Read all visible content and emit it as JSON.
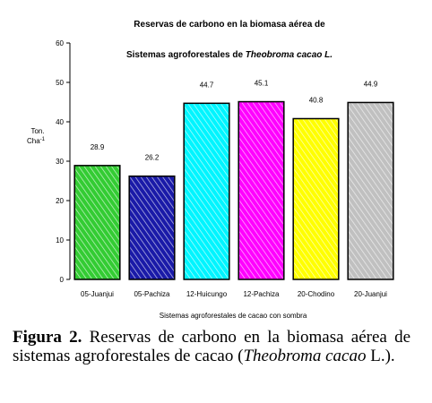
{
  "chart_data": {
    "type": "bar",
    "title_line1": "Reservas de carbono en  la biomasa aérea  de",
    "title_line2_prefix": "Sistemas agroforestales de ",
    "title_line2_italic": "Theobroma cacao L.",
    "ylabel_line1": "Ton.",
    "ylabel_line2": "Cha",
    "ylabel_sup": "-1",
    "xlabel": "Sistemas agroforestales de cacao con sombra",
    "ylim": [
      0,
      60
    ],
    "yticks": [
      0,
      10,
      20,
      30,
      40,
      50,
      60
    ],
    "categories": [
      "05-Juanjui",
      "05-Pachiza",
      "12-Huicungo",
      "12-Pachiza",
      "20-Chodino",
      "20-Juanjui"
    ],
    "values": [
      28.9,
      26.2,
      44.7,
      45.1,
      40.8,
      44.9
    ],
    "value_labels": [
      "28.9",
      "26.2",
      "44.7",
      "45.1",
      "40.8",
      "44.9"
    ],
    "colors": [
      "#33cc33",
      "#1a1aa8",
      "#00f5ff",
      "#ff00ff",
      "#ffff00",
      "#c0c0c0"
    ],
    "grid": false,
    "legend": "none"
  },
  "caption": {
    "label": "Figura 2.",
    "text_before": " Reservas de carbono en la biomasa aérea de sistemas agroforestales de cacao (",
    "italic": "Theobroma cacao",
    "text_after": " L.)."
  }
}
